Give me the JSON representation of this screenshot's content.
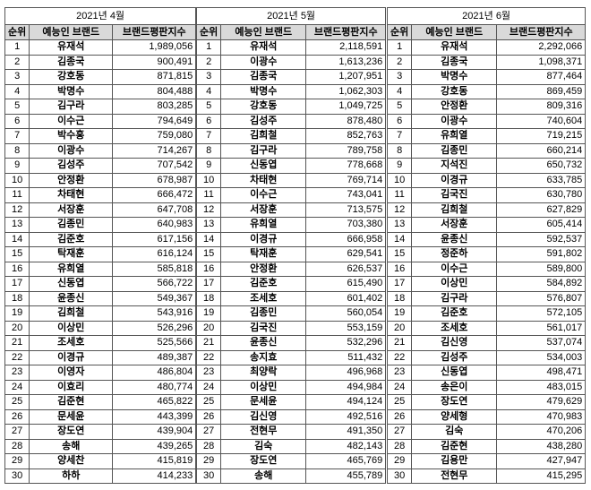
{
  "tables": [
    {
      "title": "2021년 4월",
      "headers": [
        "순위",
        "예능인 브랜드",
        "브랜드평판지수"
      ],
      "rows": [
        [
          1,
          "유재석",
          "1,989,056"
        ],
        [
          2,
          "김종국",
          "900,491"
        ],
        [
          3,
          "강호동",
          "871,815"
        ],
        [
          4,
          "박명수",
          "804,488"
        ],
        [
          5,
          "김구라",
          "803,285"
        ],
        [
          6,
          "이수근",
          "794,649"
        ],
        [
          7,
          "박수홍",
          "759,080"
        ],
        [
          8,
          "이광수",
          "714,267"
        ],
        [
          9,
          "김성주",
          "707,542"
        ],
        [
          10,
          "안정환",
          "678,987"
        ],
        [
          11,
          "차태현",
          "666,472"
        ],
        [
          12,
          "서장훈",
          "647,708"
        ],
        [
          13,
          "김종민",
          "640,983"
        ],
        [
          14,
          "김준호",
          "617,156"
        ],
        [
          15,
          "탁재훈",
          "616,124"
        ],
        [
          16,
          "유희열",
          "585,818"
        ],
        [
          17,
          "신동엽",
          "566,722"
        ],
        [
          18,
          "윤종신",
          "549,367"
        ],
        [
          19,
          "김희철",
          "543,916"
        ],
        [
          20,
          "이상민",
          "526,296"
        ],
        [
          21,
          "조세호",
          "525,566"
        ],
        [
          22,
          "이경규",
          "489,387"
        ],
        [
          23,
          "이영자",
          "486,804"
        ],
        [
          24,
          "이효리",
          "480,774"
        ],
        [
          25,
          "김준현",
          "465,822"
        ],
        [
          26,
          "문세윤",
          "443,399"
        ],
        [
          27,
          "장도연",
          "439,904"
        ],
        [
          28,
          "송해",
          "439,265"
        ],
        [
          29,
          "양세찬",
          "415,819"
        ],
        [
          30,
          "하하",
          "414,233"
        ]
      ]
    },
    {
      "title": "2021년 5월",
      "headers": [
        "순위",
        "예능인 브랜드",
        "브랜드평판지수"
      ],
      "rows": [
        [
          1,
          "유재석",
          "2,118,591"
        ],
        [
          2,
          "이광수",
          "1,613,236"
        ],
        [
          3,
          "김종국",
          "1,207,951"
        ],
        [
          4,
          "박명수",
          "1,062,303"
        ],
        [
          5,
          "강호동",
          "1,049,725"
        ],
        [
          6,
          "김성주",
          "878,480"
        ],
        [
          7,
          "김희철",
          "852,763"
        ],
        [
          8,
          "김구라",
          "789,758"
        ],
        [
          9,
          "신동엽",
          "778,668"
        ],
        [
          10,
          "차태현",
          "769,714"
        ],
        [
          11,
          "이수근",
          "743,041"
        ],
        [
          12,
          "서장훈",
          "713,575"
        ],
        [
          13,
          "유희열",
          "703,380"
        ],
        [
          14,
          "이경규",
          "666,958"
        ],
        [
          15,
          "탁재훈",
          "629,541"
        ],
        [
          16,
          "안정환",
          "626,537"
        ],
        [
          17,
          "김준호",
          "615,490"
        ],
        [
          18,
          "조세호",
          "601,402"
        ],
        [
          19,
          "김종민",
          "560,054"
        ],
        [
          20,
          "김국진",
          "553,159"
        ],
        [
          21,
          "윤종신",
          "532,296"
        ],
        [
          22,
          "송지효",
          "511,432"
        ],
        [
          23,
          "최양락",
          "496,968"
        ],
        [
          24,
          "이상민",
          "494,984"
        ],
        [
          25,
          "문세윤",
          "494,124"
        ],
        [
          26,
          "김신영",
          "492,516"
        ],
        [
          27,
          "전현무",
          "491,350"
        ],
        [
          28,
          "김숙",
          "482,143"
        ],
        [
          29,
          "장도연",
          "465,769"
        ],
        [
          30,
          "송해",
          "455,789"
        ]
      ]
    },
    {
      "title": "2021년 6월",
      "headers": [
        "순위",
        "예능인 브랜드",
        "브랜드평판지수"
      ],
      "rows": [
        [
          1,
          "유재석",
          "2,292,066"
        ],
        [
          2,
          "김종국",
          "1,098,371"
        ],
        [
          3,
          "박명수",
          "877,464"
        ],
        [
          4,
          "강호동",
          "869,459"
        ],
        [
          5,
          "안정환",
          "809,316"
        ],
        [
          6,
          "이광수",
          "740,604"
        ],
        [
          7,
          "유희열",
          "719,215"
        ],
        [
          8,
          "김종민",
          "660,214"
        ],
        [
          9,
          "지석진",
          "650,732"
        ],
        [
          10,
          "이경규",
          "633,785"
        ],
        [
          11,
          "김국진",
          "630,780"
        ],
        [
          12,
          "김희철",
          "627,829"
        ],
        [
          13,
          "서장훈",
          "605,414"
        ],
        [
          14,
          "윤종신",
          "592,537"
        ],
        [
          15,
          "정준하",
          "591,802"
        ],
        [
          16,
          "이수근",
          "589,800"
        ],
        [
          17,
          "이상민",
          "584,892"
        ],
        [
          18,
          "김구라",
          "576,807"
        ],
        [
          19,
          "김준호",
          "572,105"
        ],
        [
          20,
          "조세호",
          "561,017"
        ],
        [
          21,
          "김신영",
          "537,074"
        ],
        [
          22,
          "김성주",
          "534,003"
        ],
        [
          23,
          "신동엽",
          "498,471"
        ],
        [
          24,
          "송은이",
          "483,015"
        ],
        [
          25,
          "장도연",
          "479,629"
        ],
        [
          26,
          "양세형",
          "470,983"
        ],
        [
          27,
          "김숙",
          "470,206"
        ],
        [
          28,
          "김준현",
          "438,280"
        ],
        [
          29,
          "김용만",
          "427,947"
        ],
        [
          30,
          "전현무",
          "415,295"
        ]
      ]
    }
  ]
}
